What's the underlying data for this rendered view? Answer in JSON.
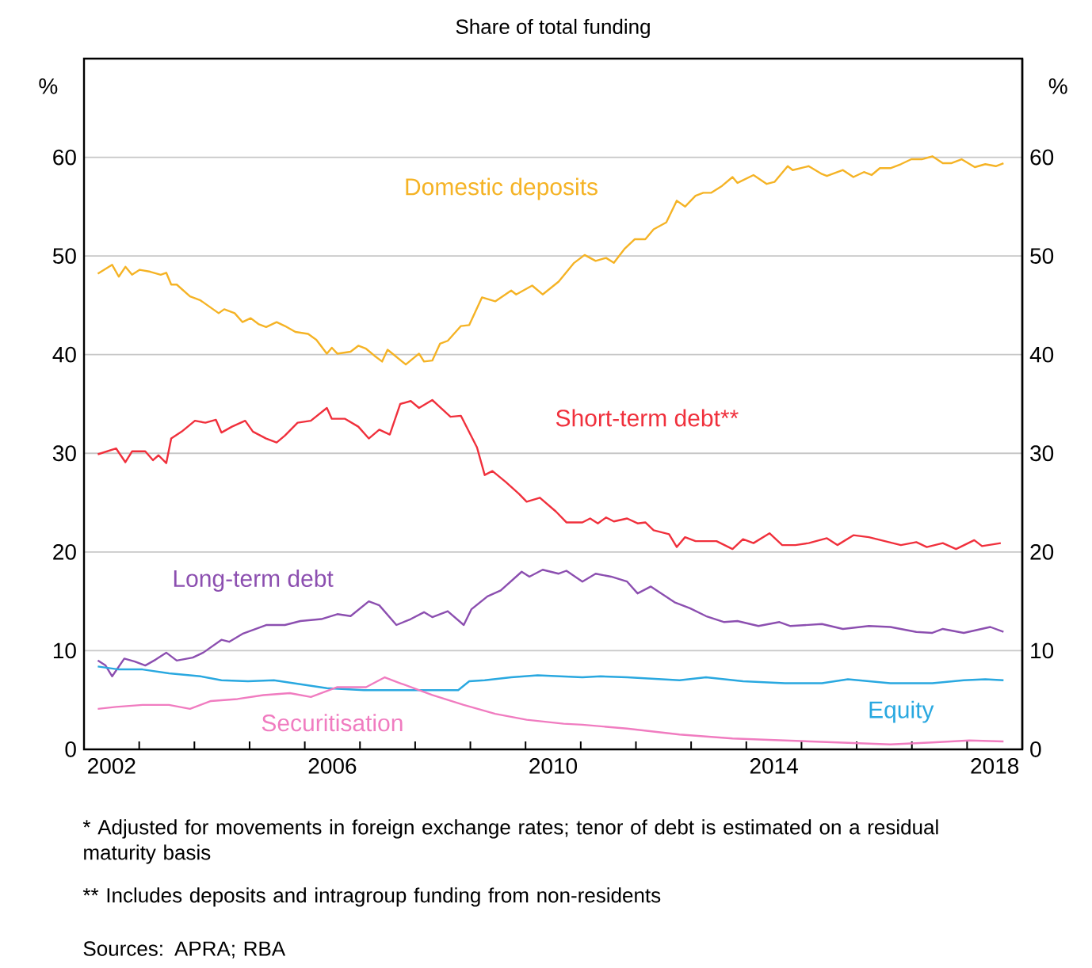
{
  "chart_data": {
    "type": "line",
    "title": "Share of total funding",
    "ylabel": "%",
    "y2label": "%",
    "xlim": [
      2002,
      2019
    ],
    "xticks": [
      {
        "value": 2002.5,
        "label": "2002"
      },
      {
        "value": 2003,
        "label": null
      },
      {
        "value": 2004,
        "label": null
      },
      {
        "value": 2005,
        "label": null
      },
      {
        "value": 2006,
        "label": null
      },
      {
        "value": 2006.5,
        "label": "2006"
      },
      {
        "value": 2007,
        "label": null
      },
      {
        "value": 2008,
        "label": null
      },
      {
        "value": 2009,
        "label": null
      },
      {
        "value": 2010,
        "label": null
      },
      {
        "value": 2010.5,
        "label": "2010"
      },
      {
        "value": 2011,
        "label": null
      },
      {
        "value": 2012,
        "label": null
      },
      {
        "value": 2013,
        "label": null
      },
      {
        "value": 2014,
        "label": null
      },
      {
        "value": 2014.5,
        "label": "2014"
      },
      {
        "value": 2015,
        "label": null
      },
      {
        "value": 2016,
        "label": null
      },
      {
        "value": 2017,
        "label": null
      },
      {
        "value": 2018,
        "label": null
      },
      {
        "value": 2018.5,
        "label": "2018"
      }
    ],
    "ylim": [
      0,
      70
    ],
    "yticks": [
      0,
      10,
      20,
      30,
      40,
      50,
      60
    ],
    "y2lim": [
      0,
      70
    ],
    "y2ticks": [
      0,
      10,
      20,
      30,
      40,
      50,
      60
    ],
    "grid": "y",
    "legend": false,
    "series": [
      {
        "name": "Domestic deposits",
        "color": "#f5b325",
        "x": [
          2002.25,
          2002.51,
          2002.63,
          2002.75,
          2002.87,
          2003.01,
          2003.2,
          2003.39,
          2003.49,
          2003.58,
          2003.68,
          2003.92,
          2004.11,
          2004.44,
          2004.54,
          2004.73,
          2004.87,
          2005.02,
          2005.16,
          2005.3,
          2005.49,
          2005.64,
          2005.83,
          2006.06,
          2006.21,
          2006.4,
          2006.49,
          2006.59,
          2006.83,
          2006.97,
          2007.11,
          2007.26,
          2007.4,
          2007.5,
          2007.59,
          2007.83,
          2008.07,
          2008.16,
          2008.31,
          2008.45,
          2008.59,
          2008.83,
          2008.98,
          2009.21,
          2009.45,
          2009.74,
          2009.83,
          2010.12,
          2010.31,
          2010.6,
          2010.88,
          2011.07,
          2011.27,
          2011.46,
          2011.6,
          2011.79,
          2011.98,
          2012.17,
          2012.32,
          2012.55,
          2012.74,
          2012.89,
          2013.08,
          2013.22,
          2013.36,
          2013.56,
          2013.75,
          2013.84,
          2014.13,
          2014.37,
          2014.51,
          2014.75,
          2014.84,
          2015.13,
          2015.37,
          2015.46,
          2015.75,
          2015.94,
          2016.13,
          2016.27,
          2016.42,
          2016.61,
          2016.8,
          2016.99,
          2017.18,
          2017.37,
          2017.56,
          2017.71,
          2017.9,
          2018.14,
          2018.33,
          2018.52,
          2018.66
        ],
        "values": [
          48.2,
          49.1,
          47.9,
          48.9,
          48.1,
          48.6,
          48.4,
          48.1,
          48.3,
          47.1,
          47.1,
          45.9,
          45.5,
          44.2,
          44.6,
          44.2,
          43.3,
          43.7,
          43.1,
          42.8,
          43.3,
          42.9,
          42.3,
          42.1,
          41.5,
          40.1,
          40.7,
          40.1,
          40.3,
          40.9,
          40.6,
          39.9,
          39.3,
          40.5,
          40.1,
          39.0,
          40.1,
          39.3,
          39.4,
          41.1,
          41.4,
          42.9,
          43.0,
          45.8,
          45.4,
          46.5,
          46.1,
          47.0,
          46.1,
          47.4,
          49.3,
          50.1,
          49.5,
          49.8,
          49.3,
          50.7,
          51.7,
          51.7,
          52.7,
          53.4,
          55.6,
          55.0,
          56.1,
          56.4,
          56.4,
          57.1,
          58.0,
          57.4,
          58.2,
          57.3,
          57.5,
          59.1,
          58.7,
          59.1,
          58.3,
          58.1,
          58.7,
          58.0,
          58.5,
          58.2,
          58.9,
          58.9,
          59.3,
          59.8,
          59.8,
          60.1,
          59.4,
          59.4,
          59.8,
          59.0,
          59.3,
          59.1,
          59.4
        ]
      },
      {
        "name": "Short-term debt**",
        "color": "#f0303c",
        "x": [
          2002.25,
          2002.58,
          2002.75,
          2002.87,
          2003.11,
          2003.25,
          2003.35,
          2003.49,
          2003.58,
          2003.77,
          2004.01,
          2004.2,
          2004.39,
          2004.49,
          2004.68,
          2004.92,
          2005.06,
          2005.3,
          2005.49,
          2005.64,
          2005.87,
          2006.11,
          2006.4,
          2006.49,
          2006.73,
          2006.97,
          2007.16,
          2007.35,
          2007.54,
          2007.73,
          2007.92,
          2008.07,
          2008.31,
          2008.64,
          2008.83,
          2009.12,
          2009.26,
          2009.4,
          2009.64,
          2009.88,
          2010.02,
          2010.26,
          2010.55,
          2010.74,
          2011.03,
          2011.17,
          2011.31,
          2011.46,
          2011.6,
          2011.84,
          2012.03,
          2012.17,
          2012.32,
          2012.6,
          2012.74,
          2012.89,
          2013.08,
          2013.46,
          2013.75,
          2013.94,
          2014.13,
          2014.42,
          2014.65,
          2014.89,
          2015.13,
          2015.46,
          2015.65,
          2015.94,
          2016.22,
          2016.51,
          2016.8,
          2017.08,
          2017.27,
          2017.56,
          2017.8,
          2018.13,
          2018.27,
          2018.61
        ],
        "values": [
          29.9,
          30.5,
          29.1,
          30.2,
          30.2,
          29.3,
          29.8,
          29.0,
          31.5,
          32.2,
          33.3,
          33.1,
          33.4,
          32.1,
          32.7,
          33.3,
          32.2,
          31.5,
          31.1,
          31.8,
          33.1,
          33.3,
          34.6,
          33.5,
          33.5,
          32.7,
          31.5,
          32.4,
          31.9,
          35.0,
          35.3,
          34.6,
          35.4,
          33.7,
          33.8,
          30.6,
          27.8,
          28.2,
          27.1,
          25.9,
          25.1,
          25.5,
          24.1,
          23.0,
          23.0,
          23.4,
          22.9,
          23.5,
          23.1,
          23.4,
          22.9,
          23.0,
          22.2,
          21.8,
          20.5,
          21.5,
          21.1,
          21.1,
          20.3,
          21.3,
          20.9,
          21.9,
          20.7,
          20.7,
          20.9,
          21.4,
          20.7,
          21.7,
          21.5,
          21.1,
          20.7,
          21.0,
          20.5,
          20.9,
          20.3,
          21.2,
          20.6,
          20.9
        ]
      },
      {
        "name": "Long-term debt",
        "color": "#8c4fb0",
        "x": [
          2002.25,
          2002.39,
          2002.51,
          2002.73,
          2002.92,
          2003.11,
          2003.3,
          2003.49,
          2003.68,
          2003.97,
          2004.16,
          2004.49,
          2004.63,
          2004.87,
          2005.3,
          2005.64,
          2005.92,
          2006.3,
          2006.59,
          2006.83,
          2007.16,
          2007.35,
          2007.66,
          2007.92,
          2008.16,
          2008.31,
          2008.59,
          2008.88,
          2009.02,
          2009.31,
          2009.55,
          2009.93,
          2010.07,
          2010.31,
          2010.6,
          2010.74,
          2011.03,
          2011.27,
          2011.55,
          2011.84,
          2012.03,
          2012.27,
          2012.7,
          2012.98,
          2013.27,
          2013.6,
          2013.84,
          2014.22,
          2014.6,
          2014.8,
          2015.37,
          2015.75,
          2016.22,
          2016.61,
          2017.08,
          2017.37,
          2017.56,
          2017.94,
          2018.42,
          2018.66
        ],
        "values": [
          9.0,
          8.5,
          7.4,
          9.2,
          8.9,
          8.5,
          9.1,
          9.8,
          9.0,
          9.3,
          9.8,
          11.1,
          10.9,
          11.7,
          12.6,
          12.6,
          13.0,
          13.2,
          13.7,
          13.5,
          15.0,
          14.6,
          12.6,
          13.2,
          13.9,
          13.4,
          14.0,
          12.6,
          14.2,
          15.5,
          16.1,
          18.0,
          17.5,
          18.2,
          17.8,
          18.1,
          17.0,
          17.8,
          17.5,
          17.0,
          15.8,
          16.5,
          14.9,
          14.3,
          13.5,
          12.9,
          13.0,
          12.5,
          12.9,
          12.5,
          12.7,
          12.2,
          12.5,
          12.4,
          11.9,
          11.8,
          12.2,
          11.8,
          12.4,
          11.9
        ]
      },
      {
        "name": "Equity",
        "color": "#29a8e0",
        "x": [
          2002.25,
          2002.63,
          2003.06,
          2003.54,
          2004.11,
          2004.49,
          2004.97,
          2005.44,
          2005.92,
          2006.4,
          2007.07,
          2007.64,
          2008.21,
          2008.78,
          2008.98,
          2009.26,
          2009.74,
          2010.22,
          2011.03,
          2011.36,
          2011.84,
          2012.79,
          2013.27,
          2013.94,
          2014.7,
          2015.37,
          2015.84,
          2016.61,
          2017.37,
          2017.94,
          2018.33,
          2018.66
        ],
        "values": [
          8.4,
          8.1,
          8.1,
          7.7,
          7.4,
          7.0,
          6.9,
          7.0,
          6.6,
          6.2,
          6.0,
          6.0,
          6.0,
          6.0,
          6.9,
          7.0,
          7.3,
          7.5,
          7.3,
          7.4,
          7.3,
          7.0,
          7.3,
          6.9,
          6.7,
          6.7,
          7.1,
          6.7,
          6.7,
          7.0,
          7.1,
          7.0
        ]
      },
      {
        "name": "Securitisation",
        "color": "#f07cc0",
        "x": [
          2002.25,
          2002.58,
          2003.06,
          2003.54,
          2003.92,
          2004.3,
          2004.78,
          2005.25,
          2005.73,
          2006.11,
          2006.59,
          2007.11,
          2007.45,
          2007.73,
          2008.31,
          2008.88,
          2009.45,
          2010.02,
          2010.69,
          2011.03,
          2011.84,
          2012.79,
          2013.75,
          2014.7,
          2015.65,
          2016.61,
          2017.37,
          2018.04,
          2018.66
        ],
        "values": [
          4.1,
          4.3,
          4.5,
          4.5,
          4.1,
          4.9,
          5.1,
          5.5,
          5.7,
          5.3,
          6.3,
          6.3,
          7.3,
          6.7,
          5.5,
          4.5,
          3.6,
          3.0,
          2.6,
          2.5,
          2.1,
          1.5,
          1.1,
          0.9,
          0.7,
          0.5,
          0.7,
          0.9,
          0.8
        ]
      }
    ],
    "annotations": [
      "* Adjusted for movements in foreign exchange rates; tenor of debt is estimated on a residual maturity basis",
      "** Includes deposits and intragroup funding from non-residents",
      "Sources: APRA; RBA"
    ]
  }
}
